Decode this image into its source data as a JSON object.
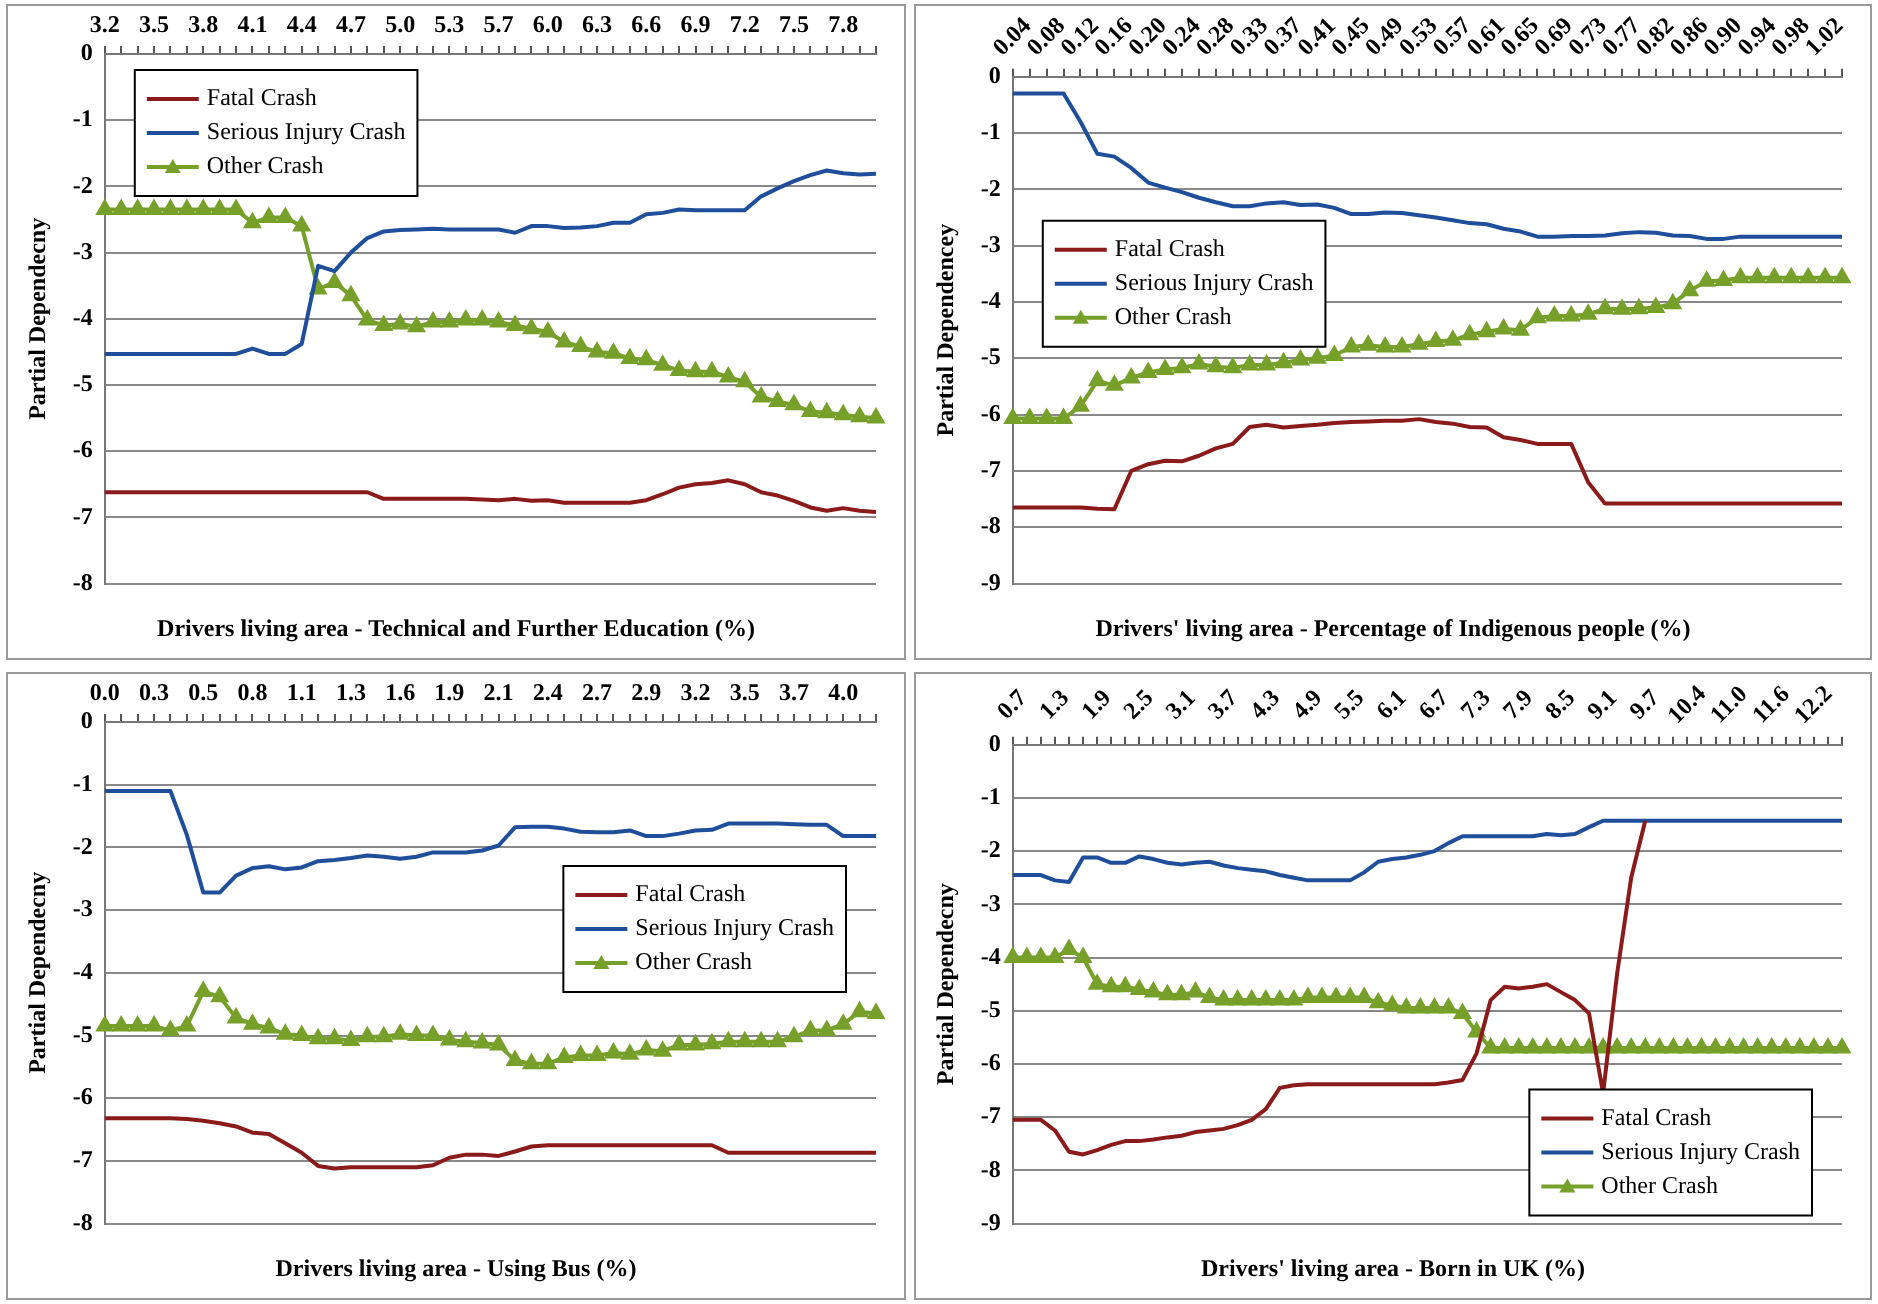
{
  "chart_data": [
    {
      "type": "line",
      "xlabel": "Drivers living area - Technical and Further Education (%)",
      "ylabel": "Partial Dependecny",
      "legend": "top left",
      "grid": "y",
      "ylim": [
        -8,
        0
      ],
      "yticks": [
        -8,
        -7,
        -6,
        -5,
        -4,
        -3,
        -2,
        -1,
        0
      ],
      "categories": [
        "3.2",
        null,
        null,
        "3.5",
        null,
        null,
        "3.8",
        null,
        null,
        "4.1",
        null,
        null,
        "4.4",
        null,
        null,
        "4.7",
        null,
        null,
        "5.0",
        null,
        null,
        "5.3",
        null,
        null,
        "5.7",
        null,
        null,
        "6.0",
        null,
        null,
        "6.3",
        null,
        null,
        "6.6",
        null,
        null,
        "6.9",
        null,
        null,
        "7.2",
        null,
        null,
        "7.5",
        null,
        null,
        "7.8",
        null,
        null
      ],
      "series": [
        {
          "name": "Fatal Crash",
          "color": "#8b1a1a",
          "values": [
            -6.62,
            -6.62,
            -6.62,
            -6.62,
            -6.62,
            -6.62,
            -6.62,
            -6.62,
            -6.62,
            -6.62,
            -6.62,
            -6.62,
            -6.62,
            -6.62,
            -6.62,
            -6.62,
            -6.62,
            -6.72,
            -6.72,
            -6.72,
            -6.72,
            -6.72,
            -6.72,
            -6.73,
            -6.74,
            -6.72,
            -6.75,
            -6.74,
            -6.78,
            -6.78,
            -6.78,
            -6.78,
            -6.78,
            -6.74,
            -6.65,
            -6.55,
            -6.5,
            -6.48,
            -6.44,
            -6.5,
            -6.62,
            -6.67,
            -6.75,
            -6.85,
            -6.9,
            -6.86,
            -6.9,
            -6.92
          ]
        },
        {
          "name": "Serious Injury Crash",
          "color": "#1f4e9a",
          "values": [
            -4.53,
            -4.53,
            -4.53,
            -4.53,
            -4.53,
            -4.53,
            -4.53,
            -4.53,
            -4.53,
            -4.45,
            -4.53,
            -4.53,
            -4.38,
            -3.2,
            -3.28,
            -3.0,
            -2.78,
            -2.68,
            -2.66,
            -2.65,
            -2.64,
            -2.65,
            -2.65,
            -2.65,
            -2.65,
            -2.7,
            -2.6,
            -2.6,
            -2.63,
            -2.62,
            -2.6,
            -2.55,
            -2.55,
            -2.42,
            -2.4,
            -2.35,
            -2.36,
            -2.36,
            -2.36,
            -2.36,
            -2.15,
            -2.03,
            -1.92,
            -1.83,
            -1.76,
            -1.8,
            -1.82,
            -1.81
          ]
        },
        {
          "name": "Other Crash",
          "color": "#77a02a",
          "marker": "triangle",
          "values": [
            -2.35,
            -2.35,
            -2.35,
            -2.35,
            -2.35,
            -2.35,
            -2.35,
            -2.35,
            -2.35,
            -2.55,
            -2.47,
            -2.47,
            -2.6,
            -3.55,
            -3.45,
            -3.65,
            -4.02,
            -4.1,
            -4.08,
            -4.12,
            -4.05,
            -4.05,
            -4.02,
            -4.02,
            -4.05,
            -4.1,
            -4.15,
            -4.2,
            -4.35,
            -4.42,
            -4.5,
            -4.52,
            -4.6,
            -4.62,
            -4.7,
            -4.78,
            -4.8,
            -4.8,
            -4.88,
            -4.95,
            -5.18,
            -5.25,
            -5.3,
            -5.4,
            -5.42,
            -5.45,
            -5.48,
            -5.5
          ]
        }
      ]
    },
    {
      "type": "line",
      "xlabel": "Drivers' living area - Percentage of Indigenous people (%)",
      "ylabel": "Partial Dependencey",
      "legend": "left",
      "grid": "y",
      "ylim": [
        -9,
        0
      ],
      "yticks": [
        -9,
        -8,
        -7,
        -6,
        -5,
        -4,
        -3,
        -2,
        -1,
        0
      ],
      "categories": [
        "0.04",
        null,
        "0.08",
        null,
        "0.12",
        null,
        "0.16",
        null,
        "0.20",
        null,
        "0.24",
        null,
        "0.28",
        null,
        "0.33",
        null,
        "0.37",
        null,
        "0.41",
        null,
        "0.45",
        null,
        "0.49",
        null,
        "0.53",
        null,
        "0.57",
        null,
        "0.61",
        null,
        "0.65",
        null,
        "0.69",
        null,
        "0.73",
        null,
        "0.77",
        null,
        "0.82",
        null,
        "0.86",
        null,
        "0.90",
        null,
        "0.94",
        null,
        "0.98",
        null,
        "1.02",
        null
      ],
      "series": [
        {
          "name": "Fatal Crash",
          "color": "#8b1a1a",
          "values": [
            -7.65,
            -7.65,
            -7.65,
            -7.65,
            -7.65,
            -7.67,
            -7.68,
            -7.0,
            -6.88,
            -6.82,
            -6.83,
            -6.73,
            -6.6,
            -6.52,
            -6.22,
            -6.18,
            -6.23,
            -6.2,
            -6.18,
            -6.15,
            -6.13,
            -6.12,
            -6.11,
            -6.11,
            -6.08,
            -6.13,
            -6.16,
            -6.22,
            -6.23,
            -6.4,
            -6.45,
            -6.52,
            -6.52,
            -6.52,
            -7.2,
            -7.58,
            -7.58,
            -7.58,
            -7.58,
            -7.58,
            -7.58,
            -7.58,
            -7.58,
            -7.58,
            -7.58,
            -7.58,
            -7.58,
            -7.58,
            -7.58,
            -7.58
          ]
        },
        {
          "name": "Serious Injury Crash",
          "color": "#1f4e9a",
          "values": [
            -0.3,
            -0.3,
            -0.3,
            -0.3,
            -0.8,
            -1.37,
            -1.42,
            -1.62,
            -1.88,
            -1.97,
            -2.05,
            -2.15,
            -2.23,
            -2.3,
            -2.3,
            -2.25,
            -2.23,
            -2.28,
            -2.27,
            -2.33,
            -2.44,
            -2.44,
            -2.41,
            -2.42,
            -2.46,
            -2.5,
            -2.55,
            -2.6,
            -2.62,
            -2.7,
            -2.75,
            -2.84,
            -2.84,
            -2.83,
            -2.83,
            -2.82,
            -2.78,
            -2.76,
            -2.77,
            -2.82,
            -2.83,
            -2.88,
            -2.88,
            -2.84,
            -2.84,
            -2.84,
            -2.84,
            -2.84,
            -2.84,
            -2.84
          ]
        },
        {
          "name": "Other Crash",
          "color": "#77a02a",
          "marker": "triangle",
          "values": [
            -6.07,
            -6.07,
            -6.07,
            -6.07,
            -5.85,
            -5.4,
            -5.48,
            -5.35,
            -5.25,
            -5.2,
            -5.17,
            -5.1,
            -5.15,
            -5.17,
            -5.12,
            -5.12,
            -5.08,
            -5.03,
            -5.0,
            -4.95,
            -4.8,
            -4.77,
            -4.8,
            -4.8,
            -4.75,
            -4.7,
            -4.68,
            -4.58,
            -4.53,
            -4.48,
            -4.5,
            -4.28,
            -4.25,
            -4.25,
            -4.22,
            -4.12,
            -4.13,
            -4.12,
            -4.1,
            -4.03,
            -3.8,
            -3.63,
            -3.62,
            -3.57,
            -3.57,
            -3.57,
            -3.57,
            -3.57,
            -3.57,
            -3.57
          ]
        }
      ]
    },
    {
      "type": "line",
      "xlabel": "Drivers living area - Using Bus (%)",
      "ylabel": "Partial Dependecny",
      "legend": "right",
      "grid": "y",
      "ylim": [
        -8,
        0
      ],
      "yticks": [
        -8,
        -7,
        -6,
        -5,
        -4,
        -3,
        -2,
        -1,
        0
      ],
      "categories": [
        "0.0",
        null,
        null,
        "0.3",
        null,
        null,
        "0.5",
        null,
        null,
        "0.8",
        null,
        null,
        "1.1",
        null,
        null,
        "1.3",
        null,
        null,
        "1.6",
        null,
        null,
        "1.9",
        null,
        null,
        "2.1",
        null,
        null,
        "2.4",
        null,
        null,
        "2.7",
        null,
        null,
        "2.9",
        null,
        null,
        "3.2",
        null,
        null,
        "3.5",
        null,
        null,
        "3.7",
        null,
        null,
        "4.0",
        null,
        null
      ],
      "series": [
        {
          "name": "Fatal Crash",
          "color": "#8b1a1a",
          "values": [
            -6.32,
            -6.32,
            -6.32,
            -6.32,
            -6.32,
            -6.33,
            -6.36,
            -6.4,
            -6.45,
            -6.55,
            -6.57,
            -6.72,
            -6.87,
            -7.08,
            -7.12,
            -7.1,
            -7.1,
            -7.1,
            -7.1,
            -7.1,
            -7.07,
            -6.95,
            -6.9,
            -6.9,
            -6.92,
            -6.85,
            -6.77,
            -6.75,
            -6.75,
            -6.75,
            -6.75,
            -6.75,
            -6.75,
            -6.75,
            -6.75,
            -6.75,
            -6.75,
            -6.75,
            -6.87,
            -6.87,
            -6.87,
            -6.87,
            -6.87,
            -6.87,
            -6.87,
            -6.87,
            -6.87,
            -6.87
          ]
        },
        {
          "name": "Serious Injury Crash",
          "color": "#1f4e9a",
          "values": [
            -1.1,
            -1.1,
            -1.1,
            -1.1,
            -1.1,
            -1.8,
            -2.72,
            -2.72,
            -2.45,
            -2.33,
            -2.3,
            -2.35,
            -2.32,
            -2.22,
            -2.2,
            -2.17,
            -2.13,
            -2.15,
            -2.18,
            -2.15,
            -2.08,
            -2.08,
            -2.08,
            -2.05,
            -1.97,
            -1.68,
            -1.67,
            -1.67,
            -1.7,
            -1.75,
            -1.76,
            -1.76,
            -1.73,
            -1.82,
            -1.82,
            -1.78,
            -1.73,
            -1.72,
            -1.62,
            -1.62,
            -1.62,
            -1.62,
            -1.63,
            -1.64,
            -1.64,
            -1.82,
            -1.82,
            -1.82
          ]
        },
        {
          "name": "Other Crash",
          "color": "#77a02a",
          "marker": "triangle",
          "values": [
            -4.85,
            -4.85,
            -4.85,
            -4.85,
            -4.92,
            -4.85,
            -4.3,
            -4.38,
            -4.72,
            -4.82,
            -4.88,
            -4.98,
            -5.0,
            -5.05,
            -5.05,
            -5.08,
            -5.02,
            -5.02,
            -4.98,
            -5.0,
            -5.0,
            -5.07,
            -5.1,
            -5.12,
            -5.15,
            -5.4,
            -5.45,
            -5.45,
            -5.35,
            -5.32,
            -5.32,
            -5.28,
            -5.3,
            -5.23,
            -5.25,
            -5.15,
            -5.15,
            -5.13,
            -5.1,
            -5.1,
            -5.1,
            -5.1,
            -5.02,
            -4.92,
            -4.92,
            -4.82,
            -4.62,
            -4.65
          ]
        }
      ]
    },
    {
      "type": "line",
      "xlabel": "Drivers' living area - Born in UK (%)",
      "ylabel": "Partial Dependecny",
      "legend": "bottom right",
      "grid": "y",
      "ylim": [
        -9,
        0
      ],
      "yticks": [
        -9,
        -8,
        -7,
        -6,
        -5,
        -4,
        -3,
        -2,
        -1,
        0
      ],
      "categories": [
        "0.7",
        null,
        null,
        "1.3",
        null,
        null,
        "1.9",
        null,
        null,
        "2.5",
        null,
        null,
        "3.1",
        null,
        null,
        "3.7",
        null,
        null,
        "4.3",
        null,
        null,
        "4.9",
        null,
        null,
        "5.5",
        null,
        null,
        "6.1",
        null,
        null,
        "6.7",
        null,
        null,
        "7.3",
        null,
        null,
        "7.9",
        null,
        null,
        "8.5",
        null,
        null,
        "9.1",
        null,
        null,
        "9.7",
        null,
        null,
        "10.4",
        null,
        null,
        "11.0",
        null,
        null,
        "11.6",
        null,
        null,
        "12.2",
        null,
        null
      ],
      "series": [
        {
          "name": "Fatal Crash",
          "color": "#8b1a1a",
          "values": [
            -7.05,
            -7.05,
            -7.05,
            -7.25,
            -7.65,
            -7.7,
            -7.62,
            -7.52,
            -7.45,
            -7.45,
            -7.42,
            -7.38,
            -7.35,
            -7.28,
            -7.25,
            -7.22,
            -7.15,
            -7.05,
            -6.85,
            -6.45,
            -6.4,
            -6.38,
            -6.38,
            -6.38,
            -6.38,
            -6.38,
            -6.38,
            -6.38,
            -6.38,
            -6.38,
            -6.38,
            -6.35,
            -6.3,
            -5.8,
            -4.8,
            -4.55,
            -4.58,
            -4.55,
            -4.5,
            -4.65,
            -4.8,
            -5.05,
            -6.55,
            -4.3,
            -2.5,
            -1.43,
            null,
            null,
            null,
            null,
            null,
            null,
            null,
            null,
            null,
            null,
            null,
            null,
            null,
            null
          ]
        },
        {
          "name": "Serious Injury Crash",
          "color": "#1f4e9a",
          "values": [
            -2.45,
            -2.45,
            -2.45,
            -2.55,
            -2.58,
            -2.12,
            -2.12,
            -2.22,
            -2.22,
            -2.1,
            -2.15,
            -2.22,
            -2.25,
            -2.22,
            -2.2,
            -2.27,
            -2.32,
            -2.35,
            -2.38,
            -2.45,
            -2.5,
            -2.55,
            -2.55,
            -2.55,
            -2.55,
            -2.4,
            -2.2,
            -2.15,
            -2.12,
            -2.07,
            -2.0,
            -1.85,
            -1.72,
            -1.72,
            -1.72,
            -1.72,
            -1.72,
            -1.72,
            -1.68,
            -1.7,
            -1.68,
            -1.55,
            -1.43,
            -1.43,
            -1.43,
            -1.43,
            -1.43,
            -1.43,
            -1.43,
            -1.43,
            -1.43,
            -1.43,
            -1.43,
            -1.43,
            -1.43,
            -1.43,
            -1.43,
            -1.43,
            -1.43,
            -1.43
          ]
        },
        {
          "name": "Other Crash",
          "color": "#77a02a",
          "marker": "triangle",
          "values": [
            -4.0,
            -4.0,
            -4.0,
            -4.0,
            -3.85,
            -4.0,
            -4.5,
            -4.55,
            -4.55,
            -4.6,
            -4.65,
            -4.7,
            -4.7,
            -4.65,
            -4.75,
            -4.8,
            -4.8,
            -4.8,
            -4.8,
            -4.8,
            -4.8,
            -4.75,
            -4.75,
            -4.75,
            -4.75,
            -4.75,
            -4.85,
            -4.9,
            -4.95,
            -4.95,
            -4.95,
            -4.95,
            -5.05,
            -5.4,
            -5.7,
            -5.7,
            -5.7,
            -5.7,
            -5.7,
            -5.7,
            -5.7,
            -5.7,
            -5.7,
            -5.7,
            -5.7,
            -5.7,
            -5.7,
            -5.7,
            -5.7,
            -5.7,
            -5.7,
            -5.7,
            -5.7,
            -5.7,
            -5.7,
            -5.7,
            -5.7,
            -5.7,
            -5.7,
            -5.7
          ]
        }
      ]
    }
  ]
}
